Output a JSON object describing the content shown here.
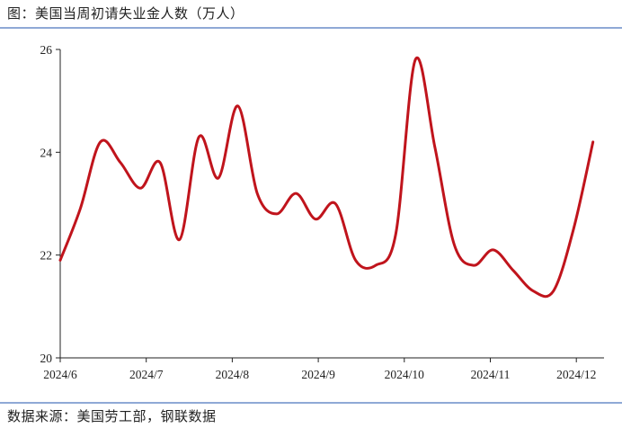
{
  "title": "图：美国当周初请失业金人数（万人）",
  "source": "数据来源：美国劳工部，钢联数据",
  "chart_data": {
    "type": "line",
    "title": "图：美国当周初请失业金人数（万人）",
    "xlabel": "",
    "ylabel": "",
    "ylim": [
      20,
      26
    ],
    "yticks": [
      20,
      22,
      24,
      26
    ],
    "xtick_labels": [
      "2024/6",
      "2024/7",
      "2024/8",
      "2024/9",
      "2024/10",
      "2024/11",
      "2024/12"
    ],
    "grid": false,
    "line_color": "#c0141c",
    "series": [
      {
        "x": [
          "2024-06-01",
          "2024-06-08",
          "2024-06-15",
          "2024-06-22",
          "2024-06-29",
          "2024-07-06",
          "2024-07-13",
          "2024-07-20",
          "2024-07-27",
          "2024-08-03",
          "2024-08-10",
          "2024-08-17",
          "2024-08-24",
          "2024-08-31",
          "2024-09-07",
          "2024-09-14",
          "2024-09-21",
          "2024-09-28",
          "2024-10-05",
          "2024-10-12",
          "2024-10-19",
          "2024-10-26",
          "2024-11-02",
          "2024-11-09",
          "2024-11-16",
          "2024-11-23",
          "2024-11-30",
          "2024-12-07"
        ],
        "values": [
          21.9,
          22.9,
          24.2,
          23.8,
          23.3,
          23.8,
          22.3,
          24.3,
          23.5,
          24.9,
          23.2,
          22.8,
          23.2,
          22.7,
          23.0,
          21.9,
          21.8,
          22.4,
          25.8,
          24.1,
          22.2,
          21.8,
          22.1,
          21.7,
          21.3,
          21.3,
          22.5,
          24.2
        ]
      }
    ]
  }
}
